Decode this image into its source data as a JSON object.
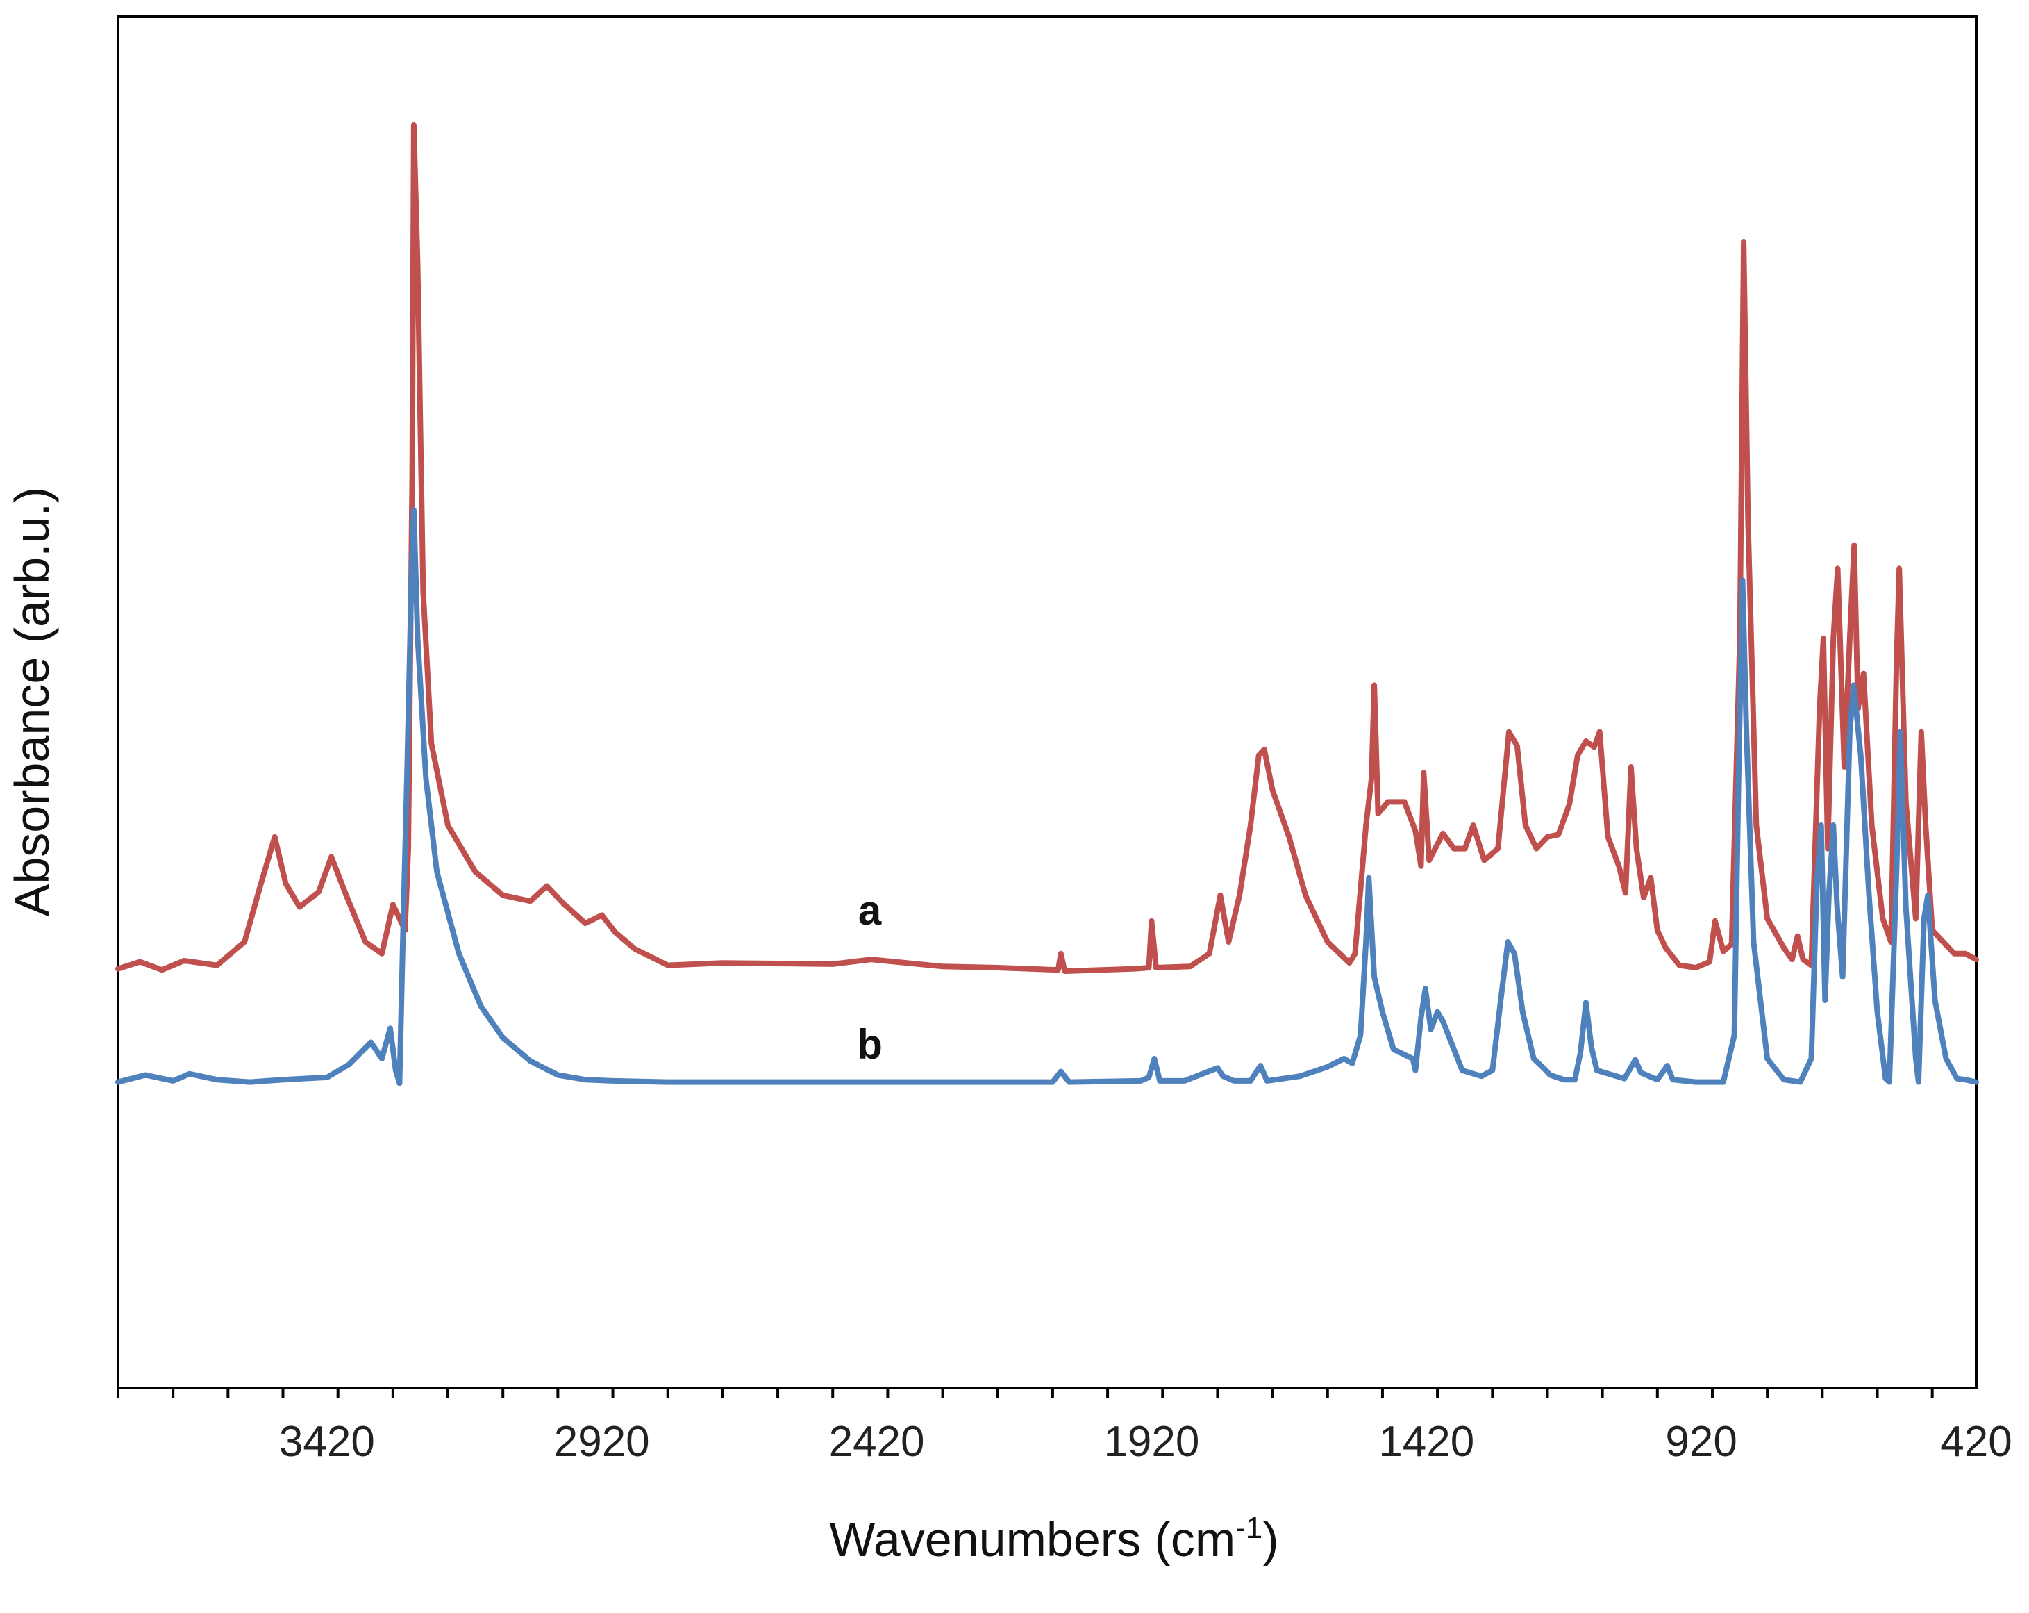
{
  "chart_data": {
    "type": "line",
    "title": "",
    "xlabel": "Wavenumbers (cm",
    "xlabel_superscript": "-1",
    "xlabel_suffix": ")",
    "ylabel": "Absorbance (arb.u.)",
    "xlim": [
      3800,
      420
    ],
    "ylim": [
      0,
      1
    ],
    "x_reversed": true,
    "x_ticks": [
      3420,
      2920,
      2420,
      1920,
      1420,
      920,
      420
    ],
    "x_tick_labels": [
      "3420",
      "2920",
      "2420",
      "1920",
      "1420",
      "920",
      "420"
    ],
    "x_minor_tick_step": 100,
    "grid": false,
    "series": [
      {
        "name": "a",
        "color": "#c0504d",
        "points": [
          [
            3800,
            0.277
          ],
          [
            3760,
            0.283
          ],
          [
            3720,
            0.276
          ],
          [
            3680,
            0.284
          ],
          [
            3620,
            0.28
          ],
          [
            3570,
            0.3
          ],
          [
            3540,
            0.35
          ],
          [
            3515,
            0.39
          ],
          [
            3495,
            0.35
          ],
          [
            3470,
            0.33
          ],
          [
            3435,
            0.343
          ],
          [
            3412,
            0.373
          ],
          [
            3385,
            0.34
          ],
          [
            3350,
            0.3
          ],
          [
            3320,
            0.29
          ],
          [
            3300,
            0.332
          ],
          [
            3288,
            0.32
          ],
          [
            3278,
            0.31
          ],
          [
            3272,
            0.38
          ],
          [
            3265,
            0.7
          ],
          [
            3262,
            1.0
          ],
          [
            3255,
            0.88
          ],
          [
            3245,
            0.6
          ],
          [
            3230,
            0.47
          ],
          [
            3200,
            0.4
          ],
          [
            3150,
            0.36
          ],
          [
            3100,
            0.34
          ],
          [
            3050,
            0.335
          ],
          [
            3020,
            0.348
          ],
          [
            2990,
            0.333
          ],
          [
            2950,
            0.316
          ],
          [
            2920,
            0.323
          ],
          [
            2895,
            0.308
          ],
          [
            2860,
            0.294
          ],
          [
            2800,
            0.28
          ],
          [
            2700,
            0.282
          ],
          [
            2500,
            0.281
          ],
          [
            2430,
            0.285
          ],
          [
            2300,
            0.279
          ],
          [
            2200,
            0.278
          ],
          [
            2090,
            0.276
          ],
          [
            2085,
            0.29
          ],
          [
            2078,
            0.275
          ],
          [
            1950,
            0.277
          ],
          [
            1925,
            0.278
          ],
          [
            1920,
            0.318
          ],
          [
            1912,
            0.278
          ],
          [
            1850,
            0.279
          ],
          [
            1815,
            0.29
          ],
          [
            1795,
            0.34
          ],
          [
            1780,
            0.3
          ],
          [
            1760,
            0.34
          ],
          [
            1740,
            0.4
          ],
          [
            1725,
            0.46
          ],
          [
            1715,
            0.465
          ],
          [
            1700,
            0.43
          ],
          [
            1670,
            0.39
          ],
          [
            1640,
            0.34
          ],
          [
            1600,
            0.3
          ],
          [
            1560,
            0.282
          ],
          [
            1550,
            0.29
          ],
          [
            1530,
            0.4
          ],
          [
            1520,
            0.44
          ],
          [
            1515,
            0.52
          ],
          [
            1508,
            0.41
          ],
          [
            1490,
            0.42
          ],
          [
            1460,
            0.42
          ],
          [
            1440,
            0.395
          ],
          [
            1430,
            0.365
          ],
          [
            1425,
            0.445
          ],
          [
            1415,
            0.37
          ],
          [
            1390,
            0.393
          ],
          [
            1370,
            0.38
          ],
          [
            1350,
            0.38
          ],
          [
            1335,
            0.4
          ],
          [
            1315,
            0.37
          ],
          [
            1290,
            0.38
          ],
          [
            1270,
            0.48
          ],
          [
            1255,
            0.468
          ],
          [
            1240,
            0.4
          ],
          [
            1220,
            0.38
          ],
          [
            1200,
            0.39
          ],
          [
            1180,
            0.392
          ],
          [
            1160,
            0.418
          ],
          [
            1145,
            0.46
          ],
          [
            1130,
            0.472
          ],
          [
            1115,
            0.467
          ],
          [
            1105,
            0.48
          ],
          [
            1090,
            0.39
          ],
          [
            1070,
            0.365
          ],
          [
            1058,
            0.342
          ],
          [
            1048,
            0.45
          ],
          [
            1038,
            0.38
          ],
          [
            1025,
            0.338
          ],
          [
            1012,
            0.355
          ],
          [
            1000,
            0.31
          ],
          [
            985,
            0.295
          ],
          [
            960,
            0.28
          ],
          [
            930,
            0.278
          ],
          [
            905,
            0.283
          ],
          [
            895,
            0.318
          ],
          [
            880,
            0.292
          ],
          [
            865,
            0.298
          ],
          [
            850,
            0.56
          ],
          [
            843,
            0.9
          ],
          [
            835,
            0.66
          ],
          [
            820,
            0.4
          ],
          [
            800,
            0.32
          ],
          [
            770,
            0.295
          ],
          [
            755,
            0.285
          ],
          [
            745,
            0.305
          ],
          [
            735,
            0.285
          ],
          [
            720,
            0.28
          ],
          [
            705,
            0.5
          ],
          [
            698,
            0.56
          ],
          [
            690,
            0.38
          ],
          [
            680,
            0.56
          ],
          [
            672,
            0.62
          ],
          [
            660,
            0.45
          ],
          [
            650,
            0.56
          ],
          [
            642,
            0.64
          ],
          [
            635,
            0.5
          ],
          [
            625,
            0.53
          ],
          [
            610,
            0.4
          ],
          [
            590,
            0.32
          ],
          [
            575,
            0.3
          ],
          [
            565,
            0.54
          ],
          [
            560,
            0.62
          ],
          [
            548,
            0.42
          ],
          [
            530,
            0.32
          ],
          [
            520,
            0.48
          ],
          [
            512,
            0.4
          ],
          [
            500,
            0.31
          ],
          [
            480,
            0.3
          ],
          [
            460,
            0.29
          ],
          [
            440,
            0.29
          ],
          [
            420,
            0.285
          ]
        ]
      },
      {
        "name": "b",
        "color": "#4f81bd",
        "points": [
          [
            3800,
            0.18
          ],
          [
            3750,
            0.186
          ],
          [
            3700,
            0.181
          ],
          [
            3670,
            0.187
          ],
          [
            3620,
            0.182
          ],
          [
            3560,
            0.18
          ],
          [
            3500,
            0.182
          ],
          [
            3420,
            0.184
          ],
          [
            3380,
            0.195
          ],
          [
            3340,
            0.214
          ],
          [
            3320,
            0.2
          ],
          [
            3305,
            0.226
          ],
          [
            3295,
            0.19
          ],
          [
            3288,
            0.179
          ],
          [
            3282,
            0.3
          ],
          [
            3274,
            0.45
          ],
          [
            3266,
            0.62
          ],
          [
            3262,
            0.67
          ],
          [
            3255,
            0.56
          ],
          [
            3240,
            0.44
          ],
          [
            3220,
            0.36
          ],
          [
            3180,
            0.29
          ],
          [
            3140,
            0.245
          ],
          [
            3100,
            0.218
          ],
          [
            3050,
            0.198
          ],
          [
            3000,
            0.186
          ],
          [
            2950,
            0.182
          ],
          [
            2900,
            0.181
          ],
          [
            2800,
            0.18
          ],
          [
            2500,
            0.18
          ],
          [
            2300,
            0.18
          ],
          [
            2100,
            0.18
          ],
          [
            2085,
            0.189
          ],
          [
            2070,
            0.18
          ],
          [
            1940,
            0.181
          ],
          [
            1925,
            0.184
          ],
          [
            1915,
            0.2
          ],
          [
            1905,
            0.181
          ],
          [
            1860,
            0.181
          ],
          [
            1800,
            0.192
          ],
          [
            1790,
            0.185
          ],
          [
            1770,
            0.181
          ],
          [
            1740,
            0.181
          ],
          [
            1722,
            0.194
          ],
          [
            1710,
            0.181
          ],
          [
            1650,
            0.185
          ],
          [
            1600,
            0.193
          ],
          [
            1570,
            0.2
          ],
          [
            1555,
            0.196
          ],
          [
            1540,
            0.22
          ],
          [
            1530,
            0.3
          ],
          [
            1525,
            0.355
          ],
          [
            1515,
            0.27
          ],
          [
            1500,
            0.24
          ],
          [
            1480,
            0.208
          ],
          [
            1445,
            0.2
          ],
          [
            1440,
            0.19
          ],
          [
            1430,
            0.235
          ],
          [
            1422,
            0.26
          ],
          [
            1412,
            0.225
          ],
          [
            1400,
            0.24
          ],
          [
            1390,
            0.232
          ],
          [
            1375,
            0.214
          ],
          [
            1355,
            0.19
          ],
          [
            1320,
            0.185
          ],
          [
            1300,
            0.19
          ],
          [
            1285,
            0.25
          ],
          [
            1272,
            0.3
          ],
          [
            1260,
            0.29
          ],
          [
            1245,
            0.24
          ],
          [
            1225,
            0.2
          ],
          [
            1205,
            0.191
          ],
          [
            1195,
            0.186
          ],
          [
            1170,
            0.182
          ],
          [
            1150,
            0.182
          ],
          [
            1140,
            0.205
          ],
          [
            1130,
            0.248
          ],
          [
            1120,
            0.21
          ],
          [
            1110,
            0.19
          ],
          [
            1060,
            0.183
          ],
          [
            1040,
            0.199
          ],
          [
            1030,
            0.188
          ],
          [
            1000,
            0.182
          ],
          [
            982,
            0.194
          ],
          [
            972,
            0.182
          ],
          [
            930,
            0.18
          ],
          [
            880,
            0.18
          ],
          [
            860,
            0.22
          ],
          [
            852,
            0.45
          ],
          [
            845,
            0.61
          ],
          [
            838,
            0.48
          ],
          [
            825,
            0.3
          ],
          [
            800,
            0.2
          ],
          [
            770,
            0.182
          ],
          [
            740,
            0.18
          ],
          [
            720,
            0.2
          ],
          [
            710,
            0.35
          ],
          [
            702,
            0.4
          ],
          [
            695,
            0.25
          ],
          [
            688,
            0.34
          ],
          [
            680,
            0.4
          ],
          [
            673,
            0.33
          ],
          [
            663,
            0.27
          ],
          [
            650,
            0.48
          ],
          [
            643,
            0.52
          ],
          [
            630,
            0.46
          ],
          [
            615,
            0.34
          ],
          [
            600,
            0.24
          ],
          [
            585,
            0.183
          ],
          [
            578,
            0.18
          ],
          [
            565,
            0.36
          ],
          [
            558,
            0.48
          ],
          [
            548,
            0.33
          ],
          [
            530,
            0.2
          ],
          [
            525,
            0.18
          ],
          [
            515,
            0.32
          ],
          [
            508,
            0.34
          ],
          [
            495,
            0.25
          ],
          [
            475,
            0.2
          ],
          [
            455,
            0.183
          ],
          [
            440,
            0.182
          ],
          [
            420,
            0.18
          ]
        ]
      }
    ],
    "annotations": [
      {
        "text": "a",
        "series": "a",
        "x": 2420,
        "y": 0.315
      },
      {
        "text": "b",
        "series": "b",
        "x": 2420,
        "y": 0.2
      }
    ]
  }
}
